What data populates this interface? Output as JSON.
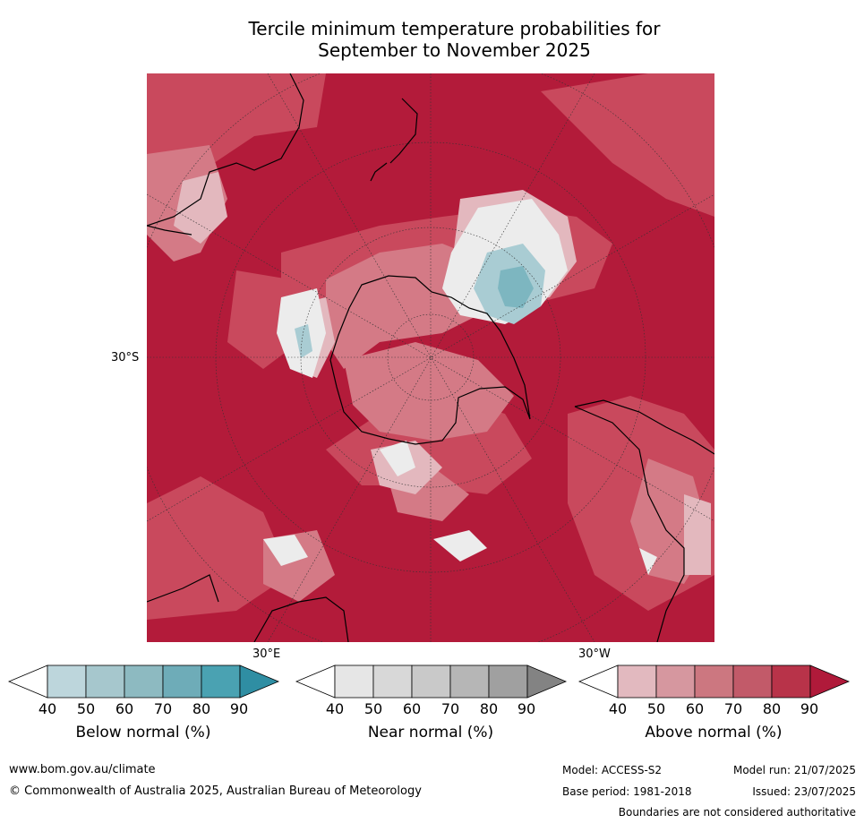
{
  "title_line1": "Tercile minimum temperature probabilities for",
  "title_line2": "September to November 2025",
  "map": {
    "lat_label": "30°S",
    "lon_label_east": "30°E",
    "lon_label_west": "30°W"
  },
  "colorbars": [
    {
      "label": "Below normal (%)",
      "ticks": [
        "40",
        "50",
        "60",
        "70",
        "80",
        "90"
      ],
      "colors": [
        "#ffffff",
        "#bdd6dc",
        "#a6c7cd",
        "#8dbac1",
        "#6eacb8",
        "#4aa2b2",
        "#2f8ea3"
      ]
    },
    {
      "label": "Near normal (%)",
      "ticks": [
        "40",
        "50",
        "60",
        "70",
        "80",
        "90"
      ],
      "colors": [
        "#ffffff",
        "#e6e6e6",
        "#d8d8d8",
        "#c9c9c9",
        "#b6b6b6",
        "#a0a0a0",
        "#838383"
      ]
    },
    {
      "label": "Above normal (%)",
      "ticks": [
        "40",
        "50",
        "60",
        "70",
        "80",
        "90"
      ],
      "colors": [
        "#ffffff",
        "#e2b9bf",
        "#d6979f",
        "#cc7780",
        "#c25a69",
        "#b83349",
        "#b01a3a"
      ]
    }
  ],
  "footer": {
    "website": "www.bom.gov.au/climate",
    "copyright": "© Commonwealth of Australia 2025, Australian Bureau of Meteorology",
    "model": "Model: ACCESS-S2",
    "base_period": "Base period: 1981-2018",
    "model_run": "Model run: 21/07/2025",
    "issued": "Issued: 23/07/2025",
    "disclaimer": "Boundaries are not considered authoritative"
  }
}
